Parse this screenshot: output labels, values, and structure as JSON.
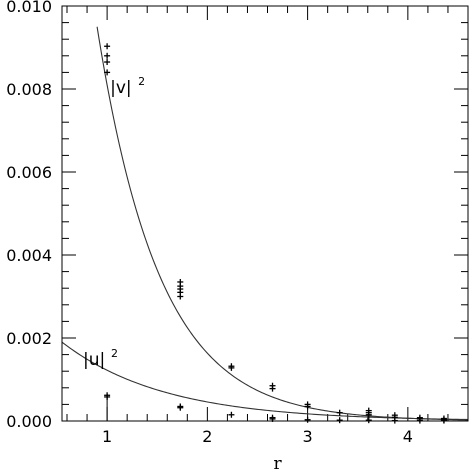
{
  "chart_data": {
    "type": "scatter",
    "xlabel": "r",
    "ylabel": "",
    "xlim": [
      0.55,
      4.6
    ],
    "ylim": [
      0,
      0.01
    ],
    "x_ticks": [
      {
        "value": 1,
        "label": "1"
      },
      {
        "value": 2,
        "label": "2"
      },
      {
        "value": 3,
        "label": "3"
      },
      {
        "value": 4,
        "label": "4"
      }
    ],
    "y_ticks": [
      {
        "value": 0.0,
        "label": "0.000"
      },
      {
        "value": 0.002,
        "label": "0.002"
      },
      {
        "value": 0.004,
        "label": "0.004"
      },
      {
        "value": 0.006,
        "label": "0.006"
      },
      {
        "value": 0.008,
        "label": "0.008"
      },
      {
        "value": 0.01,
        "label": "0.010"
      }
    ],
    "curves": [
      {
        "label": "|v|",
        "label_sup": "2",
        "label_at": {
          "x": 1.03,
          "y": 0.0079
        },
        "x_range": [
          0.9,
          4.6
        ],
        "amplitude": 0.0095,
        "x0": 0.9,
        "decay": 1.6
      },
      {
        "label": "|u|",
        "label_sup": "2",
        "label_at": {
          "x": 0.76,
          "y": 0.00135
        },
        "x_range": [
          0.55,
          4.6
        ],
        "amplitude": 0.0019,
        "x0": 0.55,
        "decay": 0.98
      }
    ],
    "series": [
      {
        "points": [
          {
            "x": 1.0,
            "y": 0.00903
          },
          {
            "x": 1.0,
            "y": 0.0088
          },
          {
            "x": 1.0,
            "y": 0.00865
          },
          {
            "x": 1.0,
            "y": 0.0084
          },
          {
            "x": 1.73,
            "y": 0.00335
          },
          {
            "x": 1.73,
            "y": 0.00325
          },
          {
            "x": 1.73,
            "y": 0.00318
          },
          {
            "x": 1.73,
            "y": 0.0031
          },
          {
            "x": 1.73,
            "y": 0.003
          },
          {
            "x": 2.24,
            "y": 0.00132
          },
          {
            "x": 2.24,
            "y": 0.00128
          },
          {
            "x": 2.65,
            "y": 0.00085
          },
          {
            "x": 2.65,
            "y": 0.00078
          },
          {
            "x": 3.0,
            "y": 0.0004
          },
          {
            "x": 3.0,
            "y": 0.00035
          },
          {
            "x": 3.32,
            "y": 0.0002
          },
          {
            "x": 3.61,
            "y": 0.00025
          },
          {
            "x": 3.61,
            "y": 0.0002
          },
          {
            "x": 3.61,
            "y": 0.00015
          },
          {
            "x": 3.87,
            "y": 0.00014
          },
          {
            "x": 3.87,
            "y": 9e-05
          },
          {
            "x": 4.12,
            "y": 8e-05
          },
          {
            "x": 4.12,
            "y": 5e-05
          },
          {
            "x": 4.36,
            "y": 6e-05
          },
          {
            "x": 4.36,
            "y": 3e-05
          }
        ]
      },
      {
        "points": [
          {
            "x": 1.0,
            "y": 0.00062
          },
          {
            "x": 1.0,
            "y": 0.00058
          },
          {
            "x": 1.73,
            "y": 0.00035
          },
          {
            "x": 1.73,
            "y": 0.00032
          },
          {
            "x": 2.24,
            "y": 0.00015
          },
          {
            "x": 2.65,
            "y": 8e-05
          },
          {
            "x": 2.65,
            "y": 5e-05
          },
          {
            "x": 3.0,
            "y": 3e-05
          },
          {
            "x": 3.32,
            "y": 2e-05
          },
          {
            "x": 3.61,
            "y": 2e-05
          },
          {
            "x": 3.87,
            "y": 1e-05
          },
          {
            "x": 4.12,
            "y": 1e-05
          },
          {
            "x": 4.36,
            "y": 1e-05
          }
        ]
      }
    ]
  }
}
